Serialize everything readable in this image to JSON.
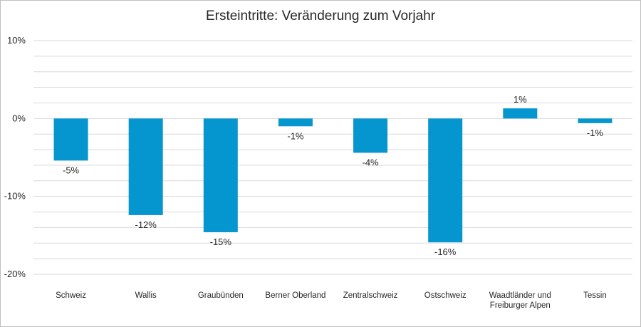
{
  "chart_data": {
    "type": "bar",
    "title": "Ersteintritte: Veränderung zum Vorjahr",
    "categories": [
      "Schweiz",
      "Wallis",
      "Graubünden",
      "Berner Oberland",
      "Zentralschweiz",
      "Ostschweiz",
      "Waadtländer und Freiburger Alpen",
      "Tessin"
    ],
    "category_lines": [
      [
        "Schweiz"
      ],
      [
        "Wallis"
      ],
      [
        "Graubünden"
      ],
      [
        "Berner Oberland"
      ],
      [
        "Zentralschweiz"
      ],
      [
        "Ostschweiz"
      ],
      [
        "Waadtländer und",
        "Freiburger Alpen"
      ],
      [
        "Tessin"
      ]
    ],
    "values": [
      -5.4,
      -12.4,
      -14.6,
      -1.0,
      -4.4,
      -15.9,
      1.3,
      -0.6
    ],
    "data_labels": [
      "-5%",
      "-12%",
      "-15%",
      "-1%",
      "-4%",
      "-16%",
      "1%",
      "-1%"
    ],
    "y_ticks": [
      10,
      0,
      -10,
      -20
    ],
    "y_tick_labels": [
      "10%",
      "0%",
      "-10%",
      "-20%"
    ],
    "ylim": [
      -20,
      10
    ],
    "grid": true,
    "bar_color": "#0596d0",
    "grid_color": "#d9d9d9"
  }
}
